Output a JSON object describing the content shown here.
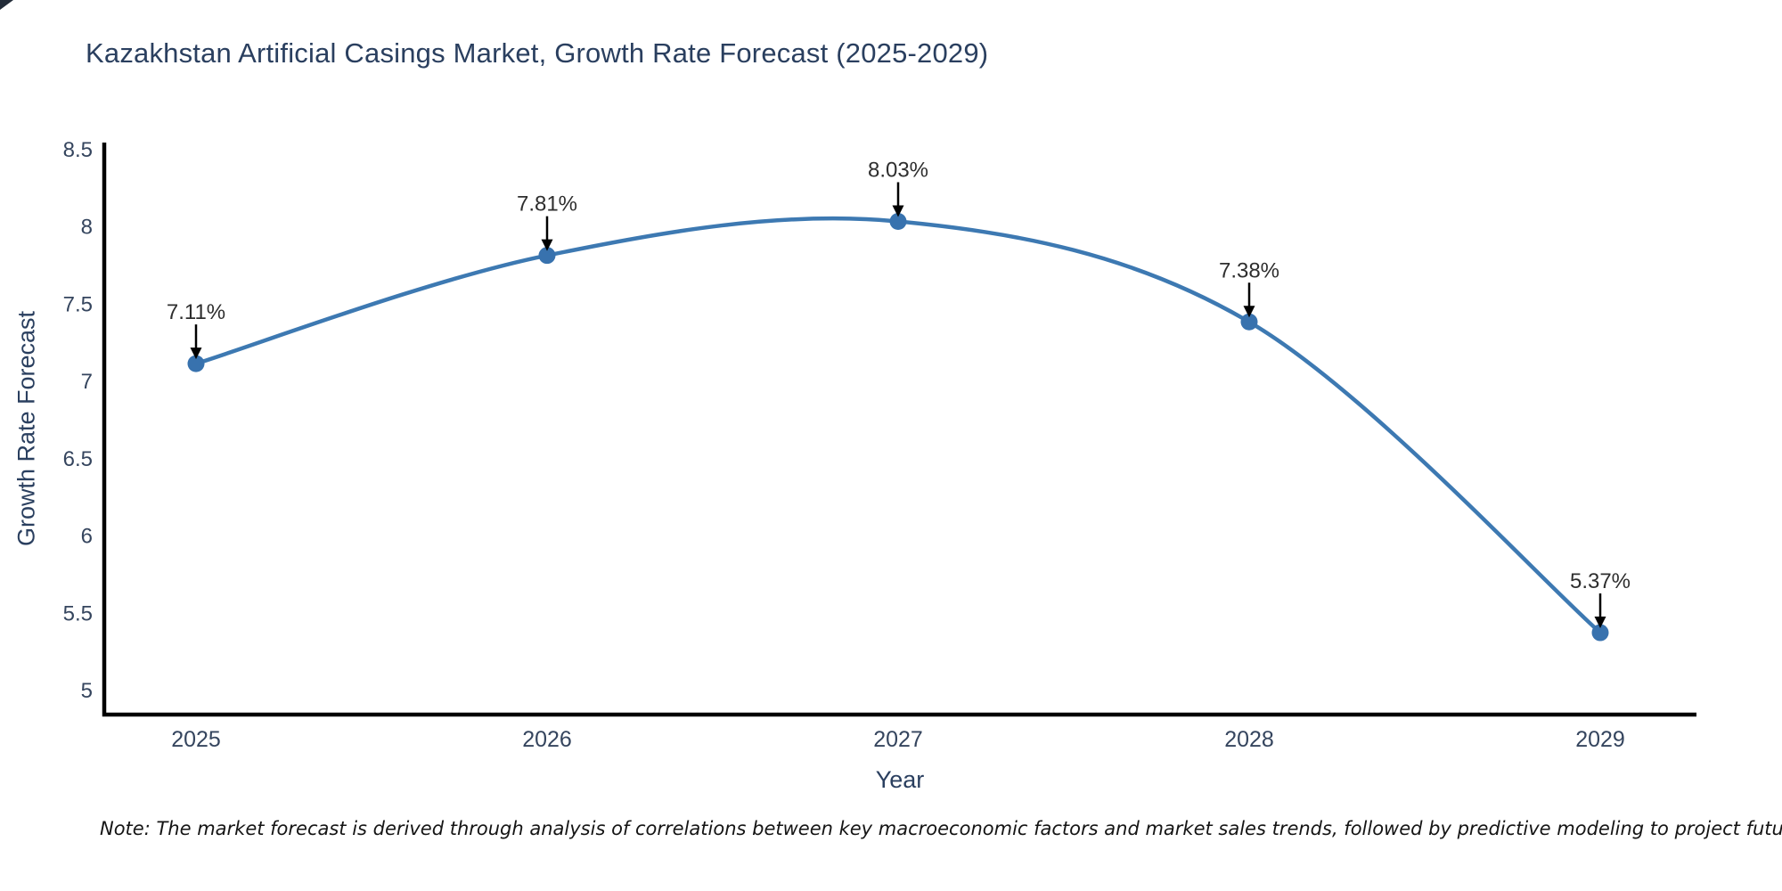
{
  "chart_data": {
    "type": "line",
    "title": "Kazakhstan Artificial Casings Market, Growth Rate Forecast (2025-2029)",
    "xlabel": "Year",
    "ylabel": "Growth Rate Forecast",
    "categories": [
      "2025",
      "2026",
      "2027",
      "2028",
      "2029"
    ],
    "series": [
      {
        "name": "Growth Rate Forecast",
        "values": [
          7.11,
          7.81,
          8.03,
          7.38,
          5.37
        ],
        "point_labels": [
          "7.11%",
          "7.81%",
          "8.03%",
          "7.38%",
          "5.37%"
        ]
      }
    ],
    "y_ticks": [
      5,
      5.5,
      6,
      6.5,
      7,
      7.5,
      8,
      8.5
    ],
    "ylim": [
      4.84,
      8.54
    ],
    "grid": false,
    "legend_position": "none",
    "line_style": "spline",
    "marker": "circle",
    "annotation_arrows": true,
    "colors": {
      "line": "#3d79b2",
      "marker": "#3872ae",
      "axis": "#000000",
      "title_text": "#2a3f5f",
      "tick_text": "#35455e",
      "annotation_text": "#2e2e2e",
      "background": "#ffffff"
    },
    "note": "Note: The market forecast is derived through analysis of correlations between key macroeconomic factors and market sales trends, followed by predictive modeling to project future sales"
  }
}
